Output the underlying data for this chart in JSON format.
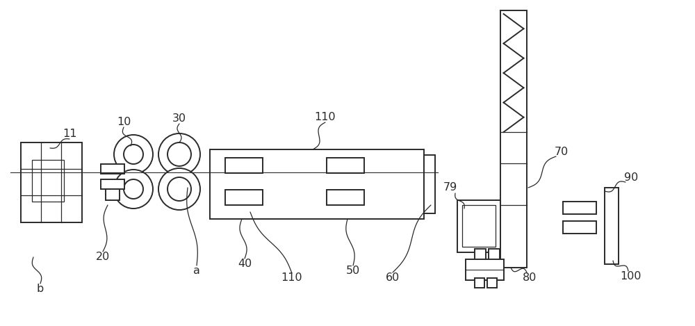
{
  "line_color": "#2a2a2a",
  "line_width": 1.4,
  "fig_w": 10.0,
  "fig_h": 4.69,
  "dpi": 100
}
